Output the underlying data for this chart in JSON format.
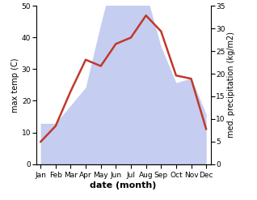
{
  "months": [
    "Jan",
    "Feb",
    "Mar",
    "Apr",
    "May",
    "Jun",
    "Jul",
    "Aug",
    "Sep",
    "Oct",
    "Nov",
    "Dec"
  ],
  "temperature": [
    7,
    12,
    23,
    33,
    31,
    38,
    40,
    47,
    42,
    28,
    27,
    11
  ],
  "precipitation": [
    9,
    9,
    13,
    17,
    31,
    44,
    40,
    38,
    26,
    18,
    19,
    11
  ],
  "temp_color": "#c0392b",
  "precip_fill_color": "#c5cef0",
  "left_ylim": [
    0,
    50
  ],
  "right_ylim": [
    0,
    35
  ],
  "left_ylabel": "max temp (C)",
  "right_ylabel": "med. precipitation (kg/m2)",
  "xlabel": "date (month)",
  "left_yticks": [
    0,
    10,
    20,
    30,
    40,
    50
  ],
  "right_yticks": [
    0,
    5,
    10,
    15,
    20,
    25,
    30,
    35
  ],
  "label_fontsize": 7,
  "tick_fontsize": 6.5,
  "xlabel_fontsize": 8,
  "linewidth": 1.8
}
